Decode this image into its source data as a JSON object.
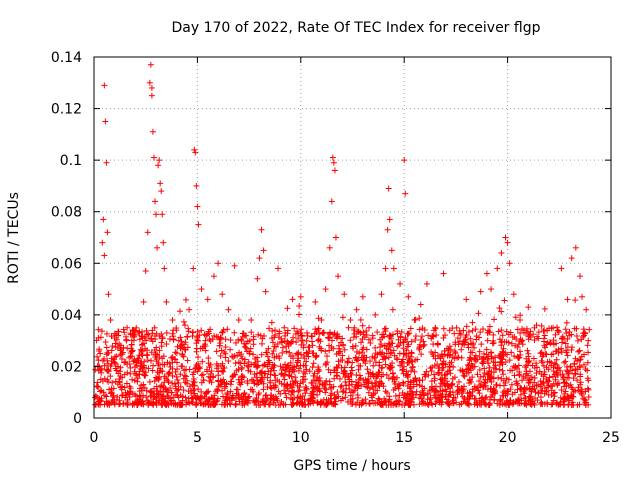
{
  "chart_data": {
    "type": "scatter",
    "title": "Day 170 of 2022, Rate Of TEC Index for receiver flgp",
    "xlabel": "GPS time / hours",
    "ylabel": "ROTI / TECUs",
    "xlim": [
      0,
      25
    ],
    "ylim": [
      0,
      0.14
    ],
    "xticks": [
      0,
      5,
      10,
      15,
      20,
      25
    ],
    "xtick_labels": [
      "0",
      "5",
      "10",
      "15",
      "20",
      "25"
    ],
    "yticks": [
      0,
      0.02,
      0.04,
      0.06,
      0.08,
      0.1,
      0.12,
      0.14
    ],
    "ytick_labels": [
      "0",
      "0.02",
      "0.04",
      "0.06",
      "0.08",
      "0.1",
      "0.12",
      "0.14"
    ],
    "grid": true,
    "marker": "+",
    "color": "#ff0000",
    "series": [
      {
        "name": "ROTI",
        "points": [
          [
            0.2,
            0.012
          ],
          [
            0.3,
            0.025
          ],
          [
            0.4,
            0.068
          ],
          [
            0.45,
            0.077
          ],
          [
            0.5,
            0.063
          ],
          [
            0.5,
            0.129
          ],
          [
            0.55,
            0.115
          ],
          [
            0.6,
            0.099
          ],
          [
            0.65,
            0.072
          ],
          [
            0.7,
            0.048
          ],
          [
            0.8,
            0.038
          ],
          [
            1.0,
            0.031
          ],
          [
            1.3,
            0.027
          ],
          [
            1.6,
            0.035
          ],
          [
            1.9,
            0.022
          ],
          [
            2.2,
            0.033
          ],
          [
            2.4,
            0.045
          ],
          [
            2.5,
            0.057
          ],
          [
            2.6,
            0.072
          ],
          [
            2.7,
            0.13
          ],
          [
            2.75,
            0.137
          ],
          [
            2.8,
            0.128
          ],
          [
            2.8,
            0.125
          ],
          [
            2.85,
            0.111
          ],
          [
            2.9,
            0.101
          ],
          [
            2.95,
            0.084
          ],
          [
            3.0,
            0.079
          ],
          [
            3.05,
            0.066
          ],
          [
            3.1,
            0.098
          ],
          [
            3.15,
            0.1
          ],
          [
            3.2,
            0.091
          ],
          [
            3.25,
            0.088
          ],
          [
            3.3,
            0.079
          ],
          [
            3.35,
            0.068
          ],
          [
            3.4,
            0.058
          ],
          [
            3.5,
            0.045
          ],
          [
            3.8,
            0.038
          ],
          [
            4.1,
            0.03
          ],
          [
            4.4,
            0.036
          ],
          [
            4.6,
            0.042
          ],
          [
            4.8,
            0.058
          ],
          [
            4.85,
            0.104
          ],
          [
            4.9,
            0.103
          ],
          [
            4.95,
            0.09
          ],
          [
            5.0,
            0.082
          ],
          [
            5.05,
            0.075
          ],
          [
            5.2,
            0.05
          ],
          [
            5.5,
            0.046
          ],
          [
            5.8,
            0.055
          ],
          [
            6.0,
            0.06
          ],
          [
            6.2,
            0.048
          ],
          [
            6.5,
            0.042
          ],
          [
            6.8,
            0.059
          ],
          [
            7.0,
            0.038
          ],
          [
            7.3,
            0.032
          ],
          [
            7.6,
            0.038
          ],
          [
            7.9,
            0.054
          ],
          [
            8.0,
            0.062
          ],
          [
            8.1,
            0.073
          ],
          [
            8.2,
            0.065
          ],
          [
            8.3,
            0.049
          ],
          [
            8.6,
            0.037
          ],
          [
            8.9,
            0.058
          ],
          [
            9.2,
            0.035
          ],
          [
            9.6,
            0.046
          ],
          [
            10.0,
            0.047
          ],
          [
            10.3,
            0.033
          ],
          [
            10.7,
            0.045
          ],
          [
            11.0,
            0.038
          ],
          [
            11.2,
            0.05
          ],
          [
            11.4,
            0.066
          ],
          [
            11.5,
            0.084
          ],
          [
            11.55,
            0.101
          ],
          [
            11.6,
            0.099
          ],
          [
            11.65,
            0.096
          ],
          [
            11.7,
            0.07
          ],
          [
            11.8,
            0.055
          ],
          [
            12.1,
            0.048
          ],
          [
            12.4,
            0.038
          ],
          [
            12.7,
            0.042
          ],
          [
            13.0,
            0.047
          ],
          [
            13.3,
            0.035
          ],
          [
            13.6,
            0.04
          ],
          [
            13.9,
            0.048
          ],
          [
            14.1,
            0.058
          ],
          [
            14.2,
            0.073
          ],
          [
            14.25,
            0.089
          ],
          [
            14.3,
            0.077
          ],
          [
            14.4,
            0.065
          ],
          [
            14.5,
            0.058
          ],
          [
            14.8,
            0.052
          ],
          [
            15.0,
            0.1
          ],
          [
            15.05,
            0.087
          ],
          [
            15.2,
            0.047
          ],
          [
            15.5,
            0.038
          ],
          [
            15.8,
            0.044
          ],
          [
            16.1,
            0.052
          ],
          [
            16.5,
            0.035
          ],
          [
            16.9,
            0.056
          ],
          [
            17.2,
            0.034
          ],
          [
            17.6,
            0.031
          ],
          [
            18.0,
            0.046
          ],
          [
            18.3,
            0.037
          ],
          [
            18.7,
            0.049
          ],
          [
            19.0,
            0.056
          ],
          [
            19.2,
            0.05
          ],
          [
            19.5,
            0.058
          ],
          [
            19.7,
            0.064
          ],
          [
            19.9,
            0.07
          ],
          [
            20.0,
            0.068
          ],
          [
            20.1,
            0.06
          ],
          [
            20.3,
            0.048
          ],
          [
            20.6,
            0.038
          ],
          [
            21.0,
            0.043
          ],
          [
            21.4,
            0.036
          ],
          [
            21.8,
            0.032
          ],
          [
            22.2,
            0.035
          ],
          [
            22.6,
            0.058
          ],
          [
            22.9,
            0.046
          ],
          [
            23.1,
            0.062
          ],
          [
            23.3,
            0.066
          ],
          [
            23.5,
            0.055
          ],
          [
            23.6,
            0.047
          ],
          [
            23.8,
            0.042
          ],
          [
            23.9,
            0.03
          ]
        ]
      }
    ]
  }
}
